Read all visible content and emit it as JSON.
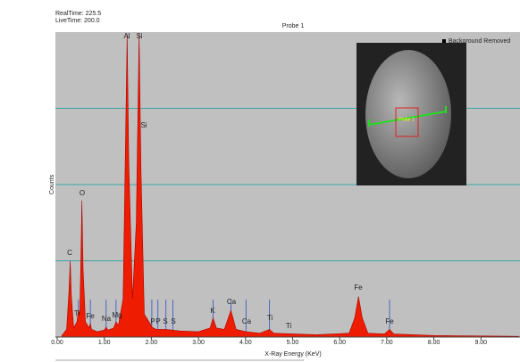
{
  "chart_data": {
    "type": "area",
    "title": "Probe 1",
    "real_time": "RealTime: 225.5",
    "live_time": "LiveTime: 200.0",
    "xlabel": "X-Ray Energy (KeV)",
    "ylabel": "Counts",
    "legend": "Background Removed",
    "inset_label": "Probe 1",
    "color": "#ee1c00",
    "grid": true,
    "x": [
      0.1,
      0.2,
      0.25,
      0.277,
      0.3,
      0.35,
      0.42,
      0.45,
      0.48,
      0.5,
      0.525,
      0.55,
      0.6,
      0.68,
      0.705,
      0.73,
      0.85,
      1.0,
      1.04,
      1.08,
      1.2,
      1.25,
      1.3,
      1.4,
      1.45,
      1.486,
      1.52,
      1.6,
      1.68,
      1.74,
      1.78,
      1.85,
      2.0,
      2.01,
      2.1,
      2.31,
      2.6,
      3.0,
      3.25,
      3.31,
      3.38,
      3.55,
      3.69,
      3.8,
      4.01,
      4.3,
      4.51,
      4.6,
      5.5,
      6.2,
      6.32,
      6.4,
      6.48,
      6.6,
      6.95,
      7.06,
      7.15,
      8.0,
      9.8
    ],
    "values": [
      0.02,
      0.1,
      0.6,
      1.0,
      0.55,
      0.12,
      0.2,
      0.35,
      0.3,
      0.9,
      1.79,
      0.9,
      0.2,
      0.12,
      0.18,
      0.1,
      0.07,
      0.09,
      0.13,
      0.09,
      0.12,
      0.2,
      0.15,
      0.5,
      2.5,
      3.97,
      2.3,
      0.5,
      1.5,
      3.97,
      2.2,
      0.3,
      0.15,
      0.13,
      0.1,
      0.1,
      0.08,
      0.07,
      0.12,
      0.25,
      0.12,
      0.1,
      0.35,
      0.1,
      0.07,
      0.05,
      0.1,
      0.05,
      0.03,
      0.05,
      0.25,
      0.53,
      0.25,
      0.05,
      0.04,
      0.1,
      0.04,
      0.02,
      0.01
    ],
    "peak_labels": [
      "C",
      "O",
      "Ti",
      "Fe",
      "Na",
      "Mg",
      "Al",
      "Si",
      "Si",
      "P",
      "P",
      "S",
      "S",
      "K",
      "Ca",
      "Ca",
      "Ti",
      "Ti",
      "Fe",
      "Fe"
    ],
    "xlim": [
      0,
      9.83
    ],
    "ylim": [
      0,
      4
    ],
    "xticks": [
      {
        "value": 0,
        "label": "0.00"
      },
      {
        "value": 1,
        "label": "1.00"
      },
      {
        "value": 2,
        "label": "2.00"
      },
      {
        "value": 3,
        "label": "3.00"
      },
      {
        "value": 4,
        "label": "4.00"
      },
      {
        "value": 5,
        "label": "5.00"
      },
      {
        "value": 6,
        "label": "6.00"
      },
      {
        "value": 7,
        "label": "7.00"
      },
      {
        "value": 8,
        "label": "8.00"
      },
      {
        "value": 9,
        "label": "9.00"
      }
    ],
    "yticks": [
      1,
      2,
      3
    ]
  }
}
